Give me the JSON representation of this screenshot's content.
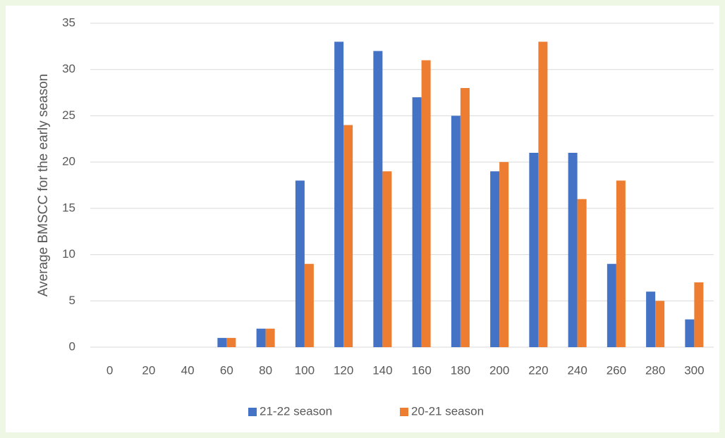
{
  "chart_data": {
    "type": "bar",
    "y_label": "Average BMSCC for the early season",
    "categories": [
      "0",
      "20",
      "40",
      "60",
      "80",
      "100",
      "120",
      "140",
      "160",
      "180",
      "200",
      "220",
      "240",
      "260",
      "280",
      "300"
    ],
    "series": [
      {
        "name": "21-22 season",
        "color": "#4472c4",
        "values": [
          0,
          0,
          0,
          1,
          2,
          18,
          33,
          32,
          27,
          25,
          19,
          21,
          21,
          9,
          6,
          3
        ]
      },
      {
        "name": "20-21 season",
        "color": "#ed7d31",
        "values": [
          0,
          0,
          0,
          1,
          2,
          9,
          24,
          19,
          31,
          28,
          20,
          33,
          16,
          18,
          5,
          7
        ]
      }
    ],
    "ylim": [
      0,
      35
    ],
    "yticks": [
      0,
      5,
      10,
      15,
      20,
      25,
      30,
      35
    ],
    "grid": true,
    "legend": "bottom"
  }
}
